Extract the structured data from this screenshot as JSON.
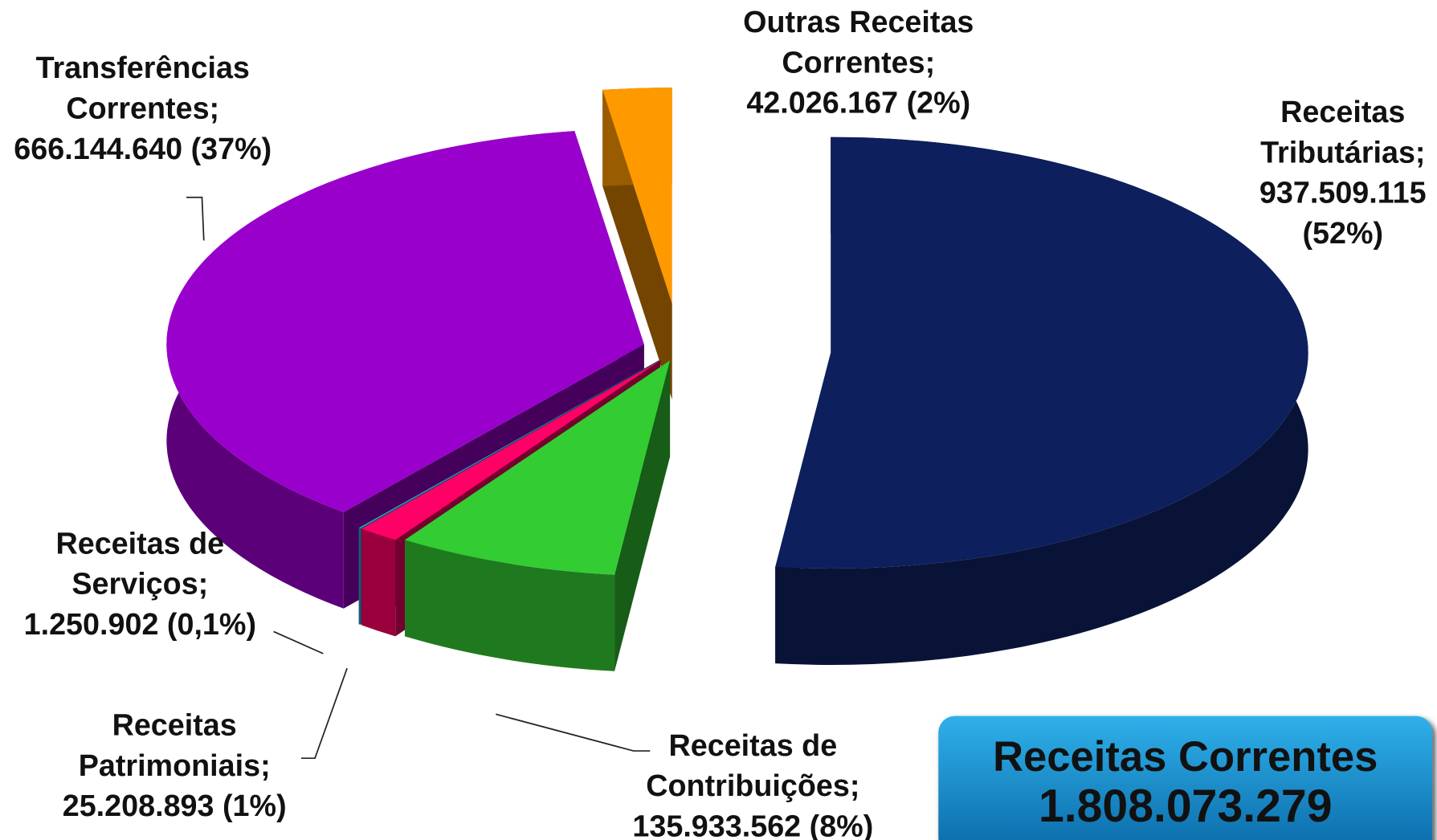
{
  "chart_data": {
    "type": "pie3d",
    "categories": [
      "Receitas Tributárias;",
      "Receitas de Contribuições;",
      "Receitas Patrimoniais;",
      "Receitas de Serviços;",
      "Transferências Correntes;",
      "Outras Receitas Correntes;"
    ],
    "values": [
      937509115,
      135933562,
      25208893,
      1250902,
      666144640,
      42026167
    ],
    "value_labels": [
      "937.509.115 (52%)",
      "135.933.562 (8%)",
      "25.208.893 (1%)",
      "1.250.902 (0,1%)",
      "666.144.640 (37%)",
      "42.026.167 (2%)"
    ],
    "colors": [
      "#0d1f5c",
      "#33cc33",
      "#ff0066",
      "#3399cc",
      "#9900cc",
      "#ff9900"
    ],
    "annotation": [
      "Receitas Correntes",
      "1.808.073.279"
    ]
  }
}
